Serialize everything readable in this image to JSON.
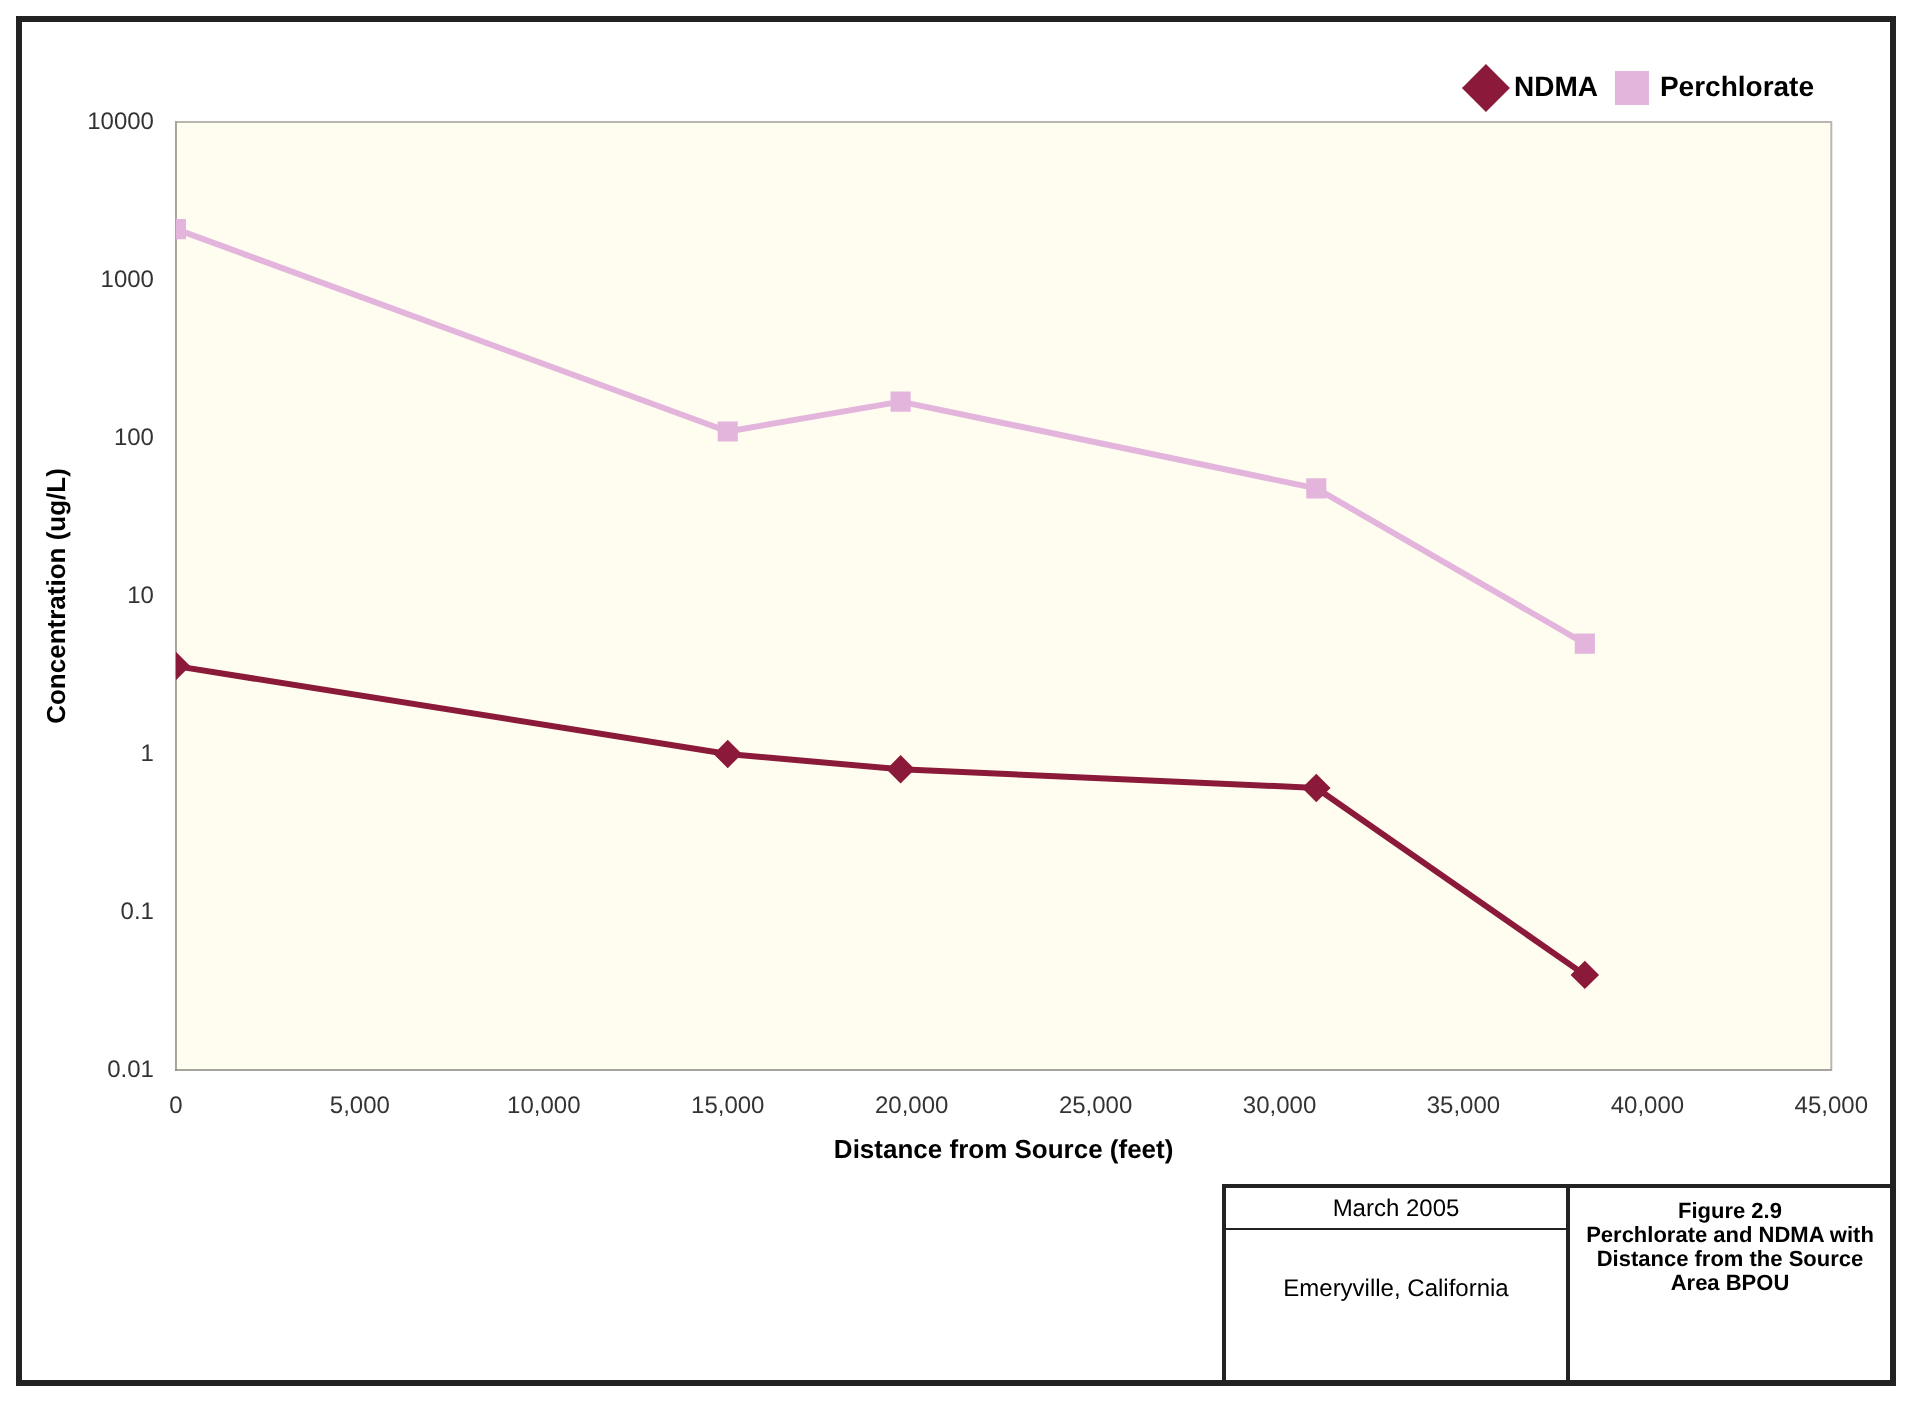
{
  "chart_data": {
    "type": "line",
    "xlabel": "Distance from Source (feet)",
    "ylabel": "Concentration (ug/L)",
    "series": [
      {
        "name": "NDMA",
        "color": "#8b1a3a",
        "marker": "diamond",
        "x": [
          0,
          15000,
          19700,
          31000,
          38300
        ],
        "values": [
          3.6,
          1.0,
          0.8,
          0.61,
          0.04
        ]
      },
      {
        "name": "Perchlorate",
        "color": "#e3b5dd",
        "marker": "square",
        "x": [
          0,
          15000,
          19700,
          31000,
          38300
        ],
        "values": [
          2100,
          110,
          170,
          48,
          5
        ]
      }
    ],
    "log": "y",
    "ylim": [
      0.01,
      10000
    ],
    "yticks": [
      0.01,
      0.1,
      1,
      10,
      100,
      1000,
      10000
    ],
    "xlim": [
      0,
      45000
    ],
    "xticks": [
      0,
      {
        "value": 5000,
        "label": "5,000"
      },
      {
        "value": 10000,
        "label": "10,000"
      },
      {
        "value": 15000,
        "label": "15,000"
      },
      {
        "value": 20000,
        "label": "20,000"
      },
      {
        "value": 25000,
        "label": "25,000"
      },
      {
        "value": 30000,
        "label": "30,000"
      },
      {
        "value": 35000,
        "label": "35,000"
      },
      {
        "value": 40000,
        "label": "40,000"
      },
      {
        "value": 45000,
        "label": "45,000"
      }
    ],
    "grid": false,
    "legend": "top right",
    "line_style": "solid",
    "annotations": [
      "March 2005",
      "Emeryville, California",
      "Figure 2.9\nPerchlorate and NDMA with Distance from the Source Area BPOU"
    ]
  }
}
